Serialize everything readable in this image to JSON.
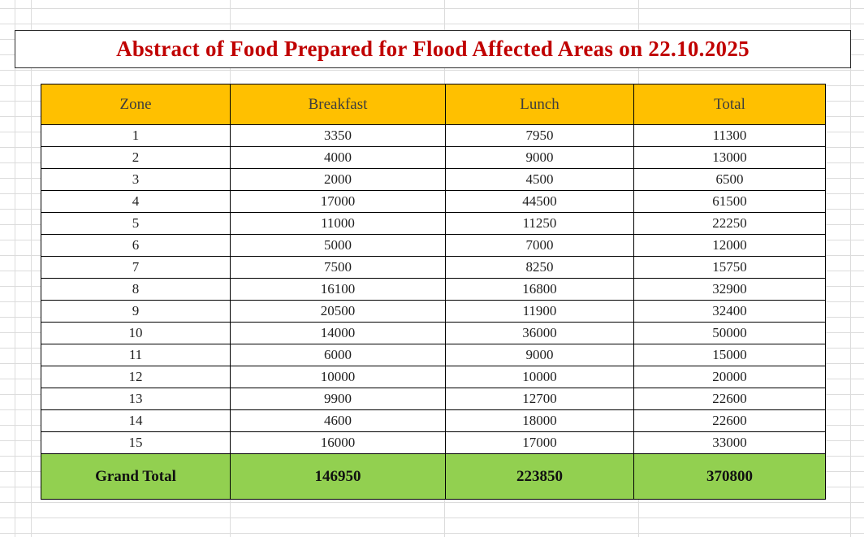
{
  "title": "Abstract of Food Prepared for Flood Affected Areas on 22.10.2025",
  "chart_data": {
    "type": "table",
    "title": "Abstract of Food Prepared for Flood Affected Areas on 22.10.2025",
    "columns": [
      "Zone",
      "Breakfast",
      "Lunch",
      "Total"
    ],
    "rows": [
      [
        "1",
        "3350",
        "7950",
        "11300"
      ],
      [
        "2",
        "4000",
        "9000",
        "13000"
      ],
      [
        "3",
        "2000",
        "4500",
        "6500"
      ],
      [
        "4",
        "17000",
        "44500",
        "61500"
      ],
      [
        "5",
        "11000",
        "11250",
        "22250"
      ],
      [
        "6",
        "5000",
        "7000",
        "12000"
      ],
      [
        "7",
        "7500",
        "8250",
        "15750"
      ],
      [
        "8",
        "16100",
        "16800",
        "32900"
      ],
      [
        "9",
        "20500",
        "11900",
        "32400"
      ],
      [
        "10",
        "14000",
        "36000",
        "50000"
      ],
      [
        "11",
        "6000",
        "9000",
        "15000"
      ],
      [
        "12",
        "10000",
        "10000",
        "20000"
      ],
      [
        "13",
        "9900",
        "12700",
        "22600"
      ],
      [
        "14",
        "4600",
        "18000",
        "22600"
      ],
      [
        "15",
        "16000",
        "17000",
        "33000"
      ]
    ],
    "footer": [
      "Grand Total",
      "146950",
      "223850",
      "370800"
    ]
  },
  "colors": {
    "header_bg": "#FFC000",
    "footer_bg": "#92D050",
    "title_color": "#C00000",
    "table_border": "#000000",
    "gridline": "#DCDCDC"
  }
}
